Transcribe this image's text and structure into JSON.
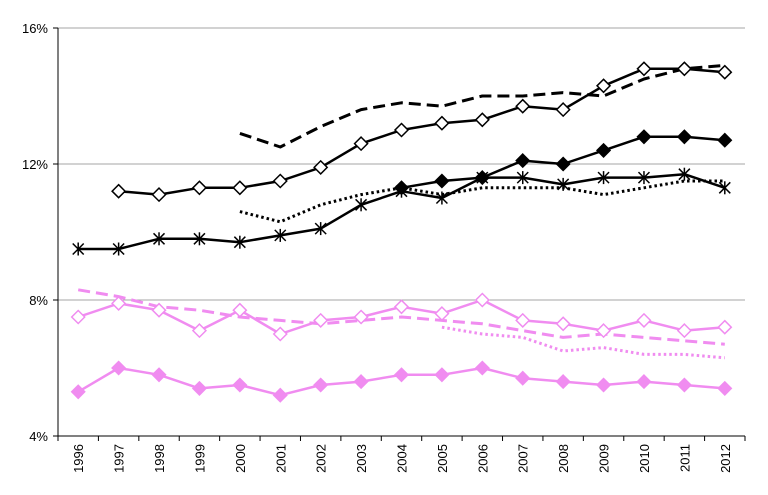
{
  "chart_data": {
    "type": "line",
    "title": "",
    "xlabel": "",
    "ylabel": "",
    "ylim": [
      4,
      16
    ],
    "y_ticks": [
      4,
      8,
      12,
      16
    ],
    "y_tick_labels": [
      "4%",
      "8%",
      "12%",
      "16%"
    ],
    "grid": true,
    "x": [
      "1996",
      "1997",
      "1998",
      "1999",
      "2000",
      "2001",
      "2002",
      "2003",
      "2004",
      "2005",
      "2006",
      "2007",
      "2008",
      "2009",
      "2010",
      "2011",
      "2012"
    ],
    "series": [
      {
        "name": "black-dashed",
        "color": "#000000",
        "dash": "dashed",
        "marker": "none",
        "values": [
          null,
          null,
          null,
          null,
          12.9,
          12.5,
          13.1,
          13.6,
          13.8,
          13.7,
          14.0,
          14.0,
          14.1,
          14.0,
          14.5,
          14.8,
          14.9
        ]
      },
      {
        "name": "black-open-diamond",
        "color": "#000000",
        "dash": "solid",
        "marker": "open-diamond",
        "values": [
          null,
          11.2,
          11.1,
          11.3,
          11.3,
          11.5,
          11.9,
          12.6,
          13.0,
          13.2,
          13.3,
          13.7,
          13.6,
          14.3,
          14.8,
          14.8,
          14.7
        ]
      },
      {
        "name": "black-filled-diamond",
        "color": "#000000",
        "dash": "solid",
        "marker": "filled-diamond",
        "values": [
          null,
          null,
          null,
          null,
          null,
          null,
          null,
          null,
          11.3,
          11.5,
          11.6,
          12.1,
          12.0,
          12.4,
          12.8,
          12.8,
          12.7
        ]
      },
      {
        "name": "black-star",
        "color": "#000000",
        "dash": "solid",
        "marker": "star",
        "values": [
          9.5,
          9.5,
          9.8,
          9.8,
          9.7,
          9.9,
          10.1,
          10.8,
          11.2,
          11.0,
          11.6,
          11.6,
          11.4,
          11.6,
          11.6,
          11.7,
          11.3
        ]
      },
      {
        "name": "black-dotted",
        "color": "#000000",
        "dash": "dotted",
        "marker": "none",
        "values": [
          null,
          null,
          null,
          null,
          10.6,
          10.3,
          10.8,
          11.1,
          11.3,
          11.1,
          11.3,
          11.3,
          11.3,
          11.1,
          11.3,
          11.5,
          11.5
        ]
      },
      {
        "name": "pink-dashed",
        "color": "#f08cf0",
        "dash": "dashed",
        "marker": "none",
        "values": [
          8.3,
          8.1,
          7.8,
          7.7,
          7.5,
          7.4,
          7.3,
          7.4,
          7.5,
          7.4,
          7.3,
          7.1,
          6.9,
          7.0,
          6.9,
          6.8,
          6.7
        ]
      },
      {
        "name": "pink-open-diamond",
        "color": "#f08cf0",
        "dash": "solid",
        "marker": "open-diamond",
        "values": [
          7.5,
          7.9,
          7.7,
          7.1,
          7.7,
          7.0,
          7.4,
          7.5,
          7.8,
          7.6,
          8.0,
          7.4,
          7.3,
          7.1,
          7.4,
          7.1,
          7.2
        ]
      },
      {
        "name": "pink-dotted",
        "color": "#f08cf0",
        "dash": "dotted",
        "marker": "none",
        "values": [
          null,
          null,
          null,
          null,
          null,
          null,
          null,
          null,
          null,
          7.2,
          7.0,
          6.9,
          6.5,
          6.6,
          6.4,
          6.4,
          6.3
        ]
      },
      {
        "name": "pink-filled-diamond",
        "color": "#f08cf0",
        "dash": "solid",
        "marker": "filled-diamond",
        "values": [
          5.3,
          6.0,
          5.8,
          5.4,
          5.5,
          5.2,
          5.5,
          5.6,
          5.8,
          5.8,
          6.0,
          5.7,
          5.6,
          5.5,
          5.6,
          5.5,
          5.4
        ]
      }
    ]
  }
}
